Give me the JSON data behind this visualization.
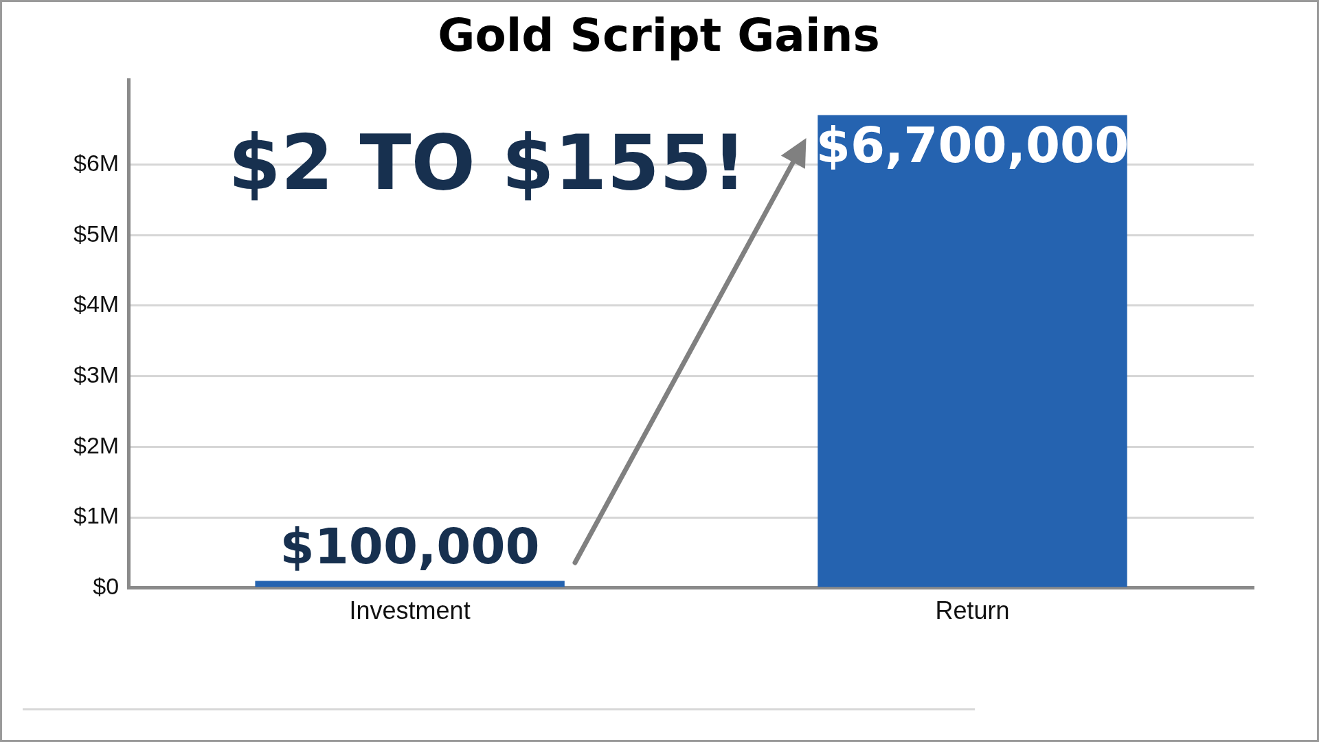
{
  "chart_data": {
    "type": "bar",
    "title": "Gold Script Gains",
    "categories": [
      "Investment",
      "Return"
    ],
    "values": [
      100000,
      6700000
    ],
    "value_labels": [
      "$100,000",
      "$6,700,000"
    ],
    "color": "#2563b0",
    "ylim": [
      0,
      7200000
    ],
    "yticks": [
      {
        "value": 0,
        "label": "$0"
      },
      {
        "value": 1000000,
        "label": "$1M"
      },
      {
        "value": 2000000,
        "label": "$2M"
      },
      {
        "value": 3000000,
        "label": "$3M"
      },
      {
        "value": 4000000,
        "label": "$4M"
      },
      {
        "value": 5000000,
        "label": "$5M"
      },
      {
        "value": 6000000,
        "label": "$6M"
      }
    ],
    "grid": "y",
    "annotations": [
      "$2 TO $155!"
    ]
  }
}
